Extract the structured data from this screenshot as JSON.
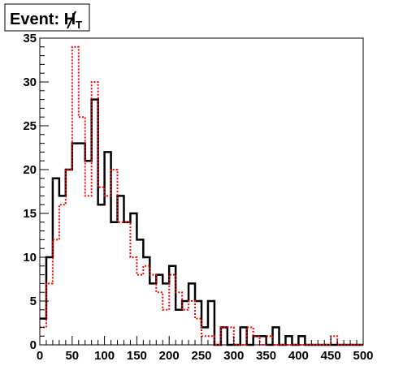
{
  "chart_data": {
    "type": "histogram",
    "title": {
      "prefix": "Event: ",
      "symbol": "H",
      "subscript": "T"
    },
    "xlabel": "",
    "ylabel": "",
    "xlim": [
      0,
      500
    ],
    "ylim": [
      0,
      35
    ],
    "bin_width": 10,
    "bin_start": 0,
    "x_ticks": [
      0,
      50,
      100,
      150,
      200,
      250,
      300,
      350,
      400,
      450,
      500
    ],
    "y_ticks": [
      0,
      5,
      10,
      15,
      20,
      25,
      30,
      35
    ],
    "series": [
      {
        "style": "solid",
        "color": "#000000",
        "values": [
          3,
          10,
          19,
          17,
          20,
          23,
          23,
          21,
          28,
          16,
          22,
          14,
          17,
          14,
          15,
          12,
          10,
          7,
          8,
          7,
          9,
          4,
          5,
          7,
          5,
          2,
          5,
          0,
          2,
          0,
          0,
          2,
          0,
          1,
          1,
          0,
          2,
          0,
          1,
          0,
          1,
          0,
          0,
          0,
          0,
          0,
          0,
          0,
          0,
          0
        ]
      },
      {
        "style": "dotted",
        "color": "#ff0000",
        "values": [
          2,
          7,
          12,
          16,
          20,
          34,
          26,
          17,
          30,
          18,
          17,
          20,
          14,
          14,
          10,
          8,
          9,
          8,
          6,
          4,
          8,
          6,
          4,
          5,
          3,
          1,
          1,
          0,
          2,
          2,
          0,
          0,
          2,
          1,
          0,
          1,
          0,
          0,
          0,
          0,
          0,
          0,
          0,
          0,
          0,
          1,
          0,
          0,
          0,
          0
        ]
      }
    ]
  }
}
